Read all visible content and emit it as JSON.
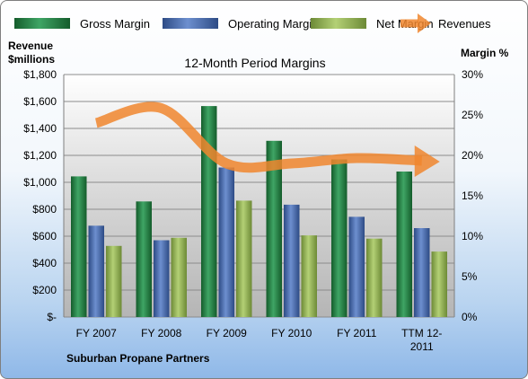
{
  "chart_data": {
    "type": "bar",
    "title": "12-Month Period Margins",
    "company": "Suburban Propane Partners",
    "left_axis_label": [
      "Revenue",
      "$millions"
    ],
    "right_axis_label": "Margin %",
    "left_ylim": [
      0,
      1800
    ],
    "left_ticks": [
      "$-",
      "$200",
      "$400",
      "$600",
      "$800",
      "$1,000",
      "$1,200",
      "$1,400",
      "$1,600",
      "$1,800"
    ],
    "right_ylim": [
      0,
      30
    ],
    "right_ticks": [
      "0%",
      "5%",
      "10%",
      "15%",
      "20%",
      "25%",
      "30%"
    ],
    "categories": [
      [
        "FY 2007"
      ],
      [
        "FY 2008"
      ],
      [
        "FY 2009"
      ],
      [
        "FY 2010"
      ],
      [
        "FY 2011"
      ],
      [
        "TTM 12-",
        "2011"
      ]
    ],
    "grid": true,
    "legend_position": "top",
    "series": [
      {
        "name": "Gross Margin",
        "axis": "right",
        "color": "#1e7a3c",
        "values": [
          17.4,
          14.3,
          26.1,
          21.8,
          19.5,
          18.0
        ]
      },
      {
        "name": "Operating Margin",
        "axis": "right",
        "color": "#3f63a8",
        "values": [
          11.3,
          9.5,
          18.5,
          13.9,
          12.4,
          11.0
        ]
      },
      {
        "name": "Net Margin",
        "axis": "right",
        "color": "#8fb050",
        "values": [
          8.8,
          9.8,
          14.4,
          10.1,
          9.7,
          8.1
        ]
      },
      {
        "name": "Revenues",
        "axis": "left",
        "type": "line",
        "color": "#f0862e",
        "values": [
          1440,
          1550,
          1140,
          1140,
          1180,
          1160
        ]
      }
    ]
  }
}
